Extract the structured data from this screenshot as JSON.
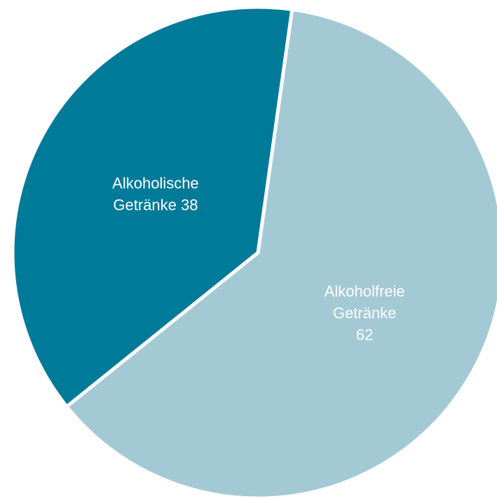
{
  "chart_data": {
    "type": "pie",
    "categories": [
      "Alkoholfreie Getränke",
      "Alkoholische Getränke"
    ],
    "values": [
      62,
      38
    ],
    "colors": [
      "#a3c9d4",
      "#007a99"
    ],
    "labels": [
      {
        "lines": [
          "Alkoholfreie",
          "Getränke",
          "62"
        ]
      },
      {
        "lines": [
          "Alkoholische",
          "Getränke 38"
        ]
      }
    ],
    "start_angle_deg": 8,
    "direction": "clockwise",
    "title": "",
    "legend": "none"
  }
}
